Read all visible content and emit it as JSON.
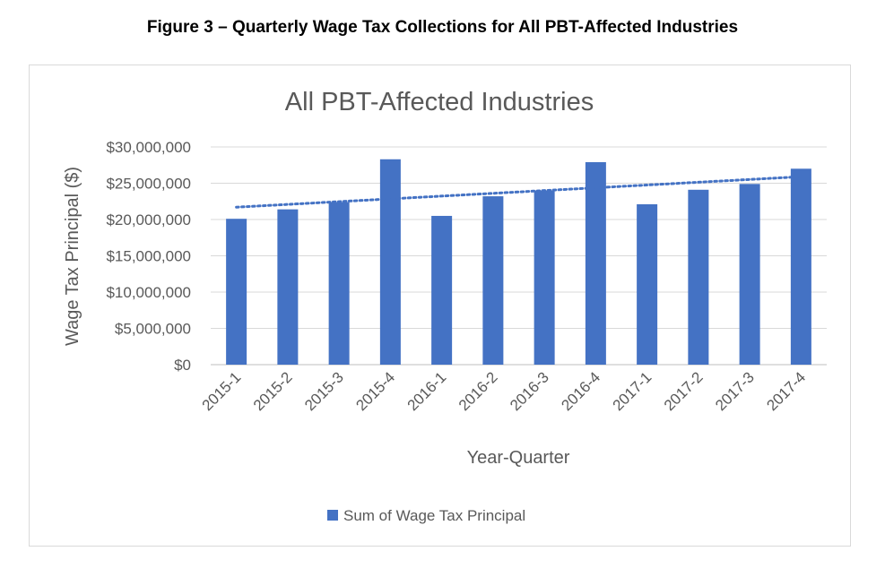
{
  "figure_caption": "Figure 3 – Quarterly Wage Tax Collections for All PBT-Affected Industries",
  "chart_data": {
    "type": "bar",
    "title": "All PBT-Affected Industries",
    "xlabel": "Year-Quarter",
    "ylabel": "Wage Tax Principal ($)",
    "ylim": [
      0,
      30000000
    ],
    "yticks": [
      0,
      5000000,
      10000000,
      15000000,
      20000000,
      25000000,
      30000000
    ],
    "ytick_labels": [
      "$0",
      "$5,000,000",
      "$10,000,000",
      "$15,000,000",
      "$20,000,000",
      "$25,000,000",
      "$30,000,000"
    ],
    "grid": true,
    "legend_position": "bottom",
    "categories": [
      "2015-1",
      "2015-2",
      "2015-3",
      "2015-4",
      "2016-1",
      "2016-2",
      "2016-3",
      "2016-4",
      "2017-1",
      "2017-2",
      "2017-3",
      "2017-4"
    ],
    "series": [
      {
        "name": "Sum of Wage Tax Principal",
        "color": "#4472c4",
        "values": [
          20100000,
          21400000,
          22400000,
          28300000,
          20500000,
          23200000,
          24000000,
          27900000,
          22100000,
          24100000,
          24900000,
          27000000
        ]
      }
    ],
    "trendline": {
      "type": "linear",
      "style": "dotted",
      "color": "#4472c4",
      "start": 21700000,
      "end": 25900000
    }
  }
}
